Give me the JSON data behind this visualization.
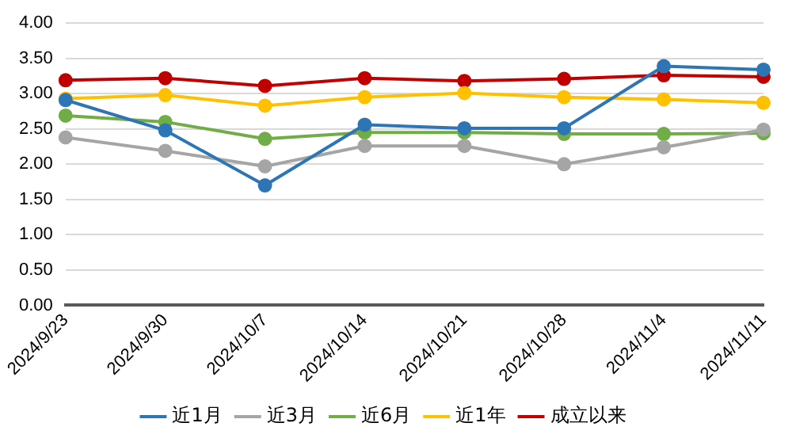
{
  "chart_data": {
    "type": "line",
    "categories": [
      "2024/9/23",
      "2024/9/30",
      "2024/10/7",
      "2024/10/14",
      "2024/10/21",
      "2024/10/28",
      "2024/11/4",
      "2024/11/11"
    ],
    "series": [
      {
        "name": "近1月",
        "color": "#2e75b6",
        "values": [
          2.91,
          2.48,
          1.7,
          2.56,
          2.51,
          2.51,
          3.39,
          3.34
        ]
      },
      {
        "name": "近3月",
        "color": "#a5a5a5",
        "values": [
          2.38,
          2.19,
          1.97,
          2.26,
          2.26,
          2.0,
          2.24,
          2.49
        ]
      },
      {
        "name": "近6月",
        "color": "#70ad47",
        "values": [
          2.69,
          2.6,
          2.36,
          2.45,
          2.45,
          2.43,
          2.43,
          2.44
        ]
      },
      {
        "name": "近1年",
        "color": "#ffc000",
        "values": [
          2.93,
          2.98,
          2.83,
          2.95,
          3.01,
          2.95,
          2.92,
          2.87
        ]
      },
      {
        "name": "成立以来",
        "color": "#c00000",
        "values": [
          3.19,
          3.22,
          3.11,
          3.22,
          3.18,
          3.21,
          3.26,
          3.24
        ]
      }
    ],
    "ylim": [
      0,
      4
    ],
    "yticks": [
      {
        "value": 0,
        "label": "0.00"
      },
      {
        "value": 0.5,
        "label": "0.50"
      },
      {
        "value": 1,
        "label": "1.00"
      },
      {
        "value": 1.5,
        "label": "1.50"
      },
      {
        "value": 2,
        "label": "2.00"
      },
      {
        "value": 2.5,
        "label": "2.50"
      },
      {
        "value": 3,
        "label": "3.00"
      },
      {
        "value": 3.5,
        "label": "3.50"
      },
      {
        "value": 4,
        "label": "4.00"
      }
    ],
    "grid": "y",
    "legend": "bottom",
    "marker": "circle",
    "line_style": "solid"
  }
}
